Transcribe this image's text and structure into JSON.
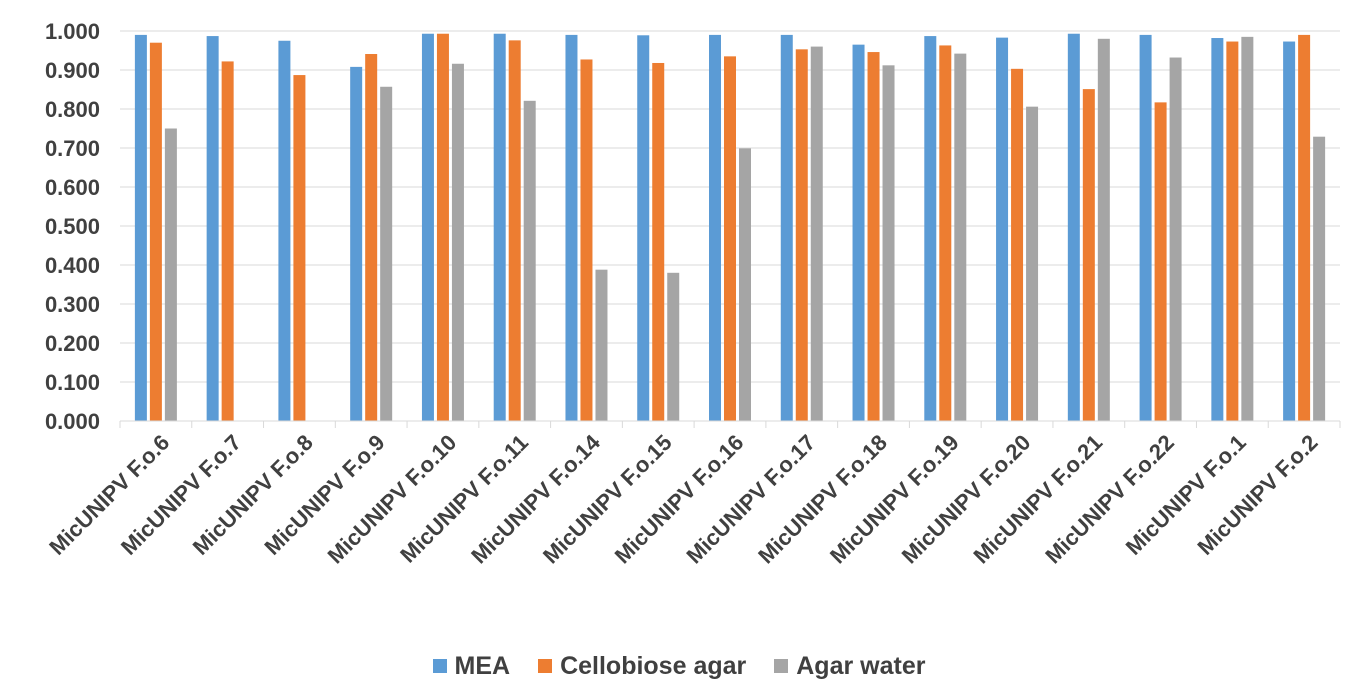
{
  "chart_data": {
    "type": "bar",
    "title": "",
    "xlabel": "",
    "ylabel": "",
    "ylim": [
      0,
      1
    ],
    "yticks": [
      "0.000",
      "0.100",
      "0.200",
      "0.300",
      "0.400",
      "0.500",
      "0.600",
      "0.700",
      "0.800",
      "0.900",
      "1.000"
    ],
    "grid": true,
    "legend_position": "bottom",
    "categories": [
      "MicUNIPV F.o.6",
      "MicUNIPV F.o.7",
      "MicUNIPV F.o.8",
      "MicUNIPV F.o.9",
      "MicUNIPV F.o.10",
      "MicUNIPV F.o.11",
      "MicUNIPV F.o.14",
      "MicUNIPV F.o.15",
      "MicUNIPV F.o.16",
      "MicUNIPV F.o.17",
      "MicUNIPV F.o.18",
      "MicUNIPV F.o.19",
      "MicUNIPV F.o.20",
      "MicUNIPV F.o.21",
      "MicUNIPV F.o.22",
      "MicUNIPV F.o.1",
      "MicUNIPV F.o.2"
    ],
    "series": [
      {
        "name": "MEA",
        "color": "#5B9BD5",
        "values": [
          0.99,
          0.987,
          0.975,
          0.908,
          0.993,
          0.993,
          0.99,
          0.989,
          0.99,
          0.99,
          0.965,
          0.987,
          0.983,
          0.993,
          0.99,
          0.982,
          0.973
        ]
      },
      {
        "name": "Cellobiose agar",
        "color": "#ED7D31",
        "values": [
          0.97,
          0.922,
          0.887,
          0.941,
          0.993,
          0.976,
          0.927,
          0.918,
          0.935,
          0.953,
          0.946,
          0.963,
          0.903,
          0.851,
          0.817,
          0.973,
          0.99
        ]
      },
      {
        "name": "Agar water",
        "color": "#A5A5A5",
        "values": [
          0.75,
          null,
          null,
          0.857,
          0.916,
          0.821,
          0.388,
          0.38,
          0.699,
          0.96,
          0.912,
          0.942,
          0.806,
          0.98,
          0.932,
          0.985,
          0.729
        ]
      }
    ]
  }
}
